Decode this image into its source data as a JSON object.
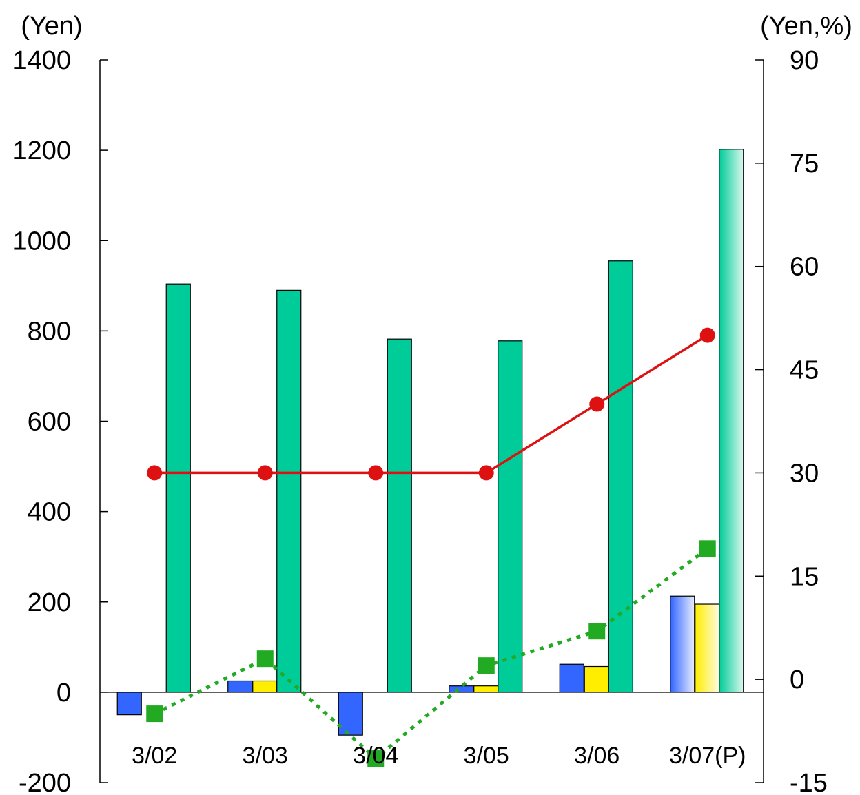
{
  "chart_data": {
    "type": "bar",
    "categories": [
      "3/02",
      "3/03",
      "3/04",
      "3/05",
      "3/06",
      "3/07(P)"
    ],
    "left_axis": {
      "unit": "(Yen)",
      "ylim": [
        -200,
        1400
      ],
      "ticks": [
        -200,
        0,
        200,
        400,
        600,
        800,
        1000,
        1200,
        1400
      ]
    },
    "right_axis": {
      "unit": "(Yen,%)",
      "ylim": [
        -15,
        90
      ],
      "ticks": [
        -15,
        0,
        15,
        30,
        45,
        60,
        75,
        90
      ]
    },
    "bar_series": [
      {
        "axis": "left",
        "color": "#3366ff",
        "values": [
          -50,
          25,
          -95,
          14,
          62,
          213
        ]
      },
      {
        "axis": "left",
        "color": "#ffee00",
        "values": [
          0,
          25,
          0,
          14,
          57,
          195
        ]
      },
      {
        "axis": "left",
        "color": "#00cc99",
        "values": [
          904,
          890,
          782,
          778,
          955,
          1202
        ]
      }
    ],
    "line_series": [
      {
        "axis": "right",
        "color": "#dd1111",
        "style": "solid",
        "marker": "circle",
        "values": [
          30,
          30,
          30,
          30,
          40,
          50
        ]
      },
      {
        "axis": "right",
        "color": "#22aa22",
        "style": "dotted",
        "marker": "square",
        "values": [
          -5,
          3,
          -11.5,
          2,
          7,
          19
        ]
      }
    ],
    "projected_category_gradient": true,
    "grid": false,
    "legend": "none"
  }
}
